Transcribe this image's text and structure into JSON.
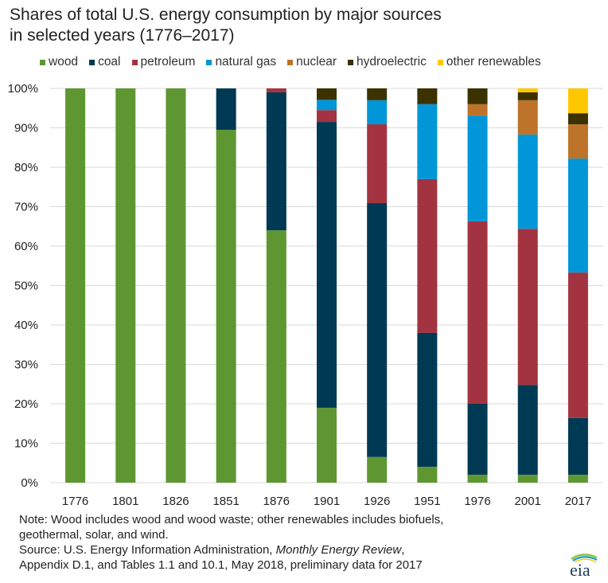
{
  "chart_data": {
    "type": "bar",
    "stacked": true,
    "title": "Shares of total U.S. energy consumption by major sources in selected years (1776–2017)",
    "title_lines": [
      "Shares of total U.S. energy consumption by major sources",
      "in selected years (1776–2017)"
    ],
    "xlabel": "",
    "ylabel": "",
    "ylim": [
      0,
      100
    ],
    "yticks": [
      "0%",
      "10%",
      "20%",
      "30%",
      "40%",
      "50%",
      "60%",
      "70%",
      "80%",
      "90%",
      "100%"
    ],
    "grid": true,
    "legend_position": "top",
    "categories": [
      "1776",
      "1801",
      "1826",
      "1851",
      "1876",
      "1901",
      "1926",
      "1951",
      "1976",
      "2001",
      "2017"
    ],
    "series": [
      {
        "name": "wood",
        "color": "#5e9732",
        "values": [
          100,
          100,
          100,
          89.5,
          64,
          19,
          6.5,
          4,
          2,
          2,
          2
        ]
      },
      {
        "name": "coal",
        "color": "#003953",
        "values": [
          0,
          0,
          0,
          10.5,
          35,
          72.5,
          64.4,
          34,
          18,
          22.8,
          14.4
        ]
      },
      {
        "name": "petroleum",
        "color": "#a33340",
        "values": [
          0,
          0,
          0,
          0,
          1,
          3,
          20,
          39,
          46.3,
          39.6,
          36.9
        ]
      },
      {
        "name": "natural gas",
        "color": "#0096d7",
        "values": [
          0,
          0,
          0,
          0,
          0,
          2.6,
          6.1,
          19,
          26.8,
          23.9,
          28.9
        ]
      },
      {
        "name": "nuclear",
        "color": "#bd732a",
        "values": [
          0,
          0,
          0,
          0,
          0,
          0,
          0,
          0,
          2.9,
          8.7,
          8.7
        ]
      },
      {
        "name": "hydroelectric",
        "color": "#3b3200",
        "values": [
          0,
          0,
          0,
          0,
          0,
          2.9,
          3,
          4,
          4,
          2,
          2.8
        ]
      },
      {
        "name": "other renewables",
        "color": "#ffc700",
        "values": [
          0,
          0,
          0,
          0,
          0,
          0,
          0,
          0,
          0,
          1,
          6.3
        ]
      }
    ]
  },
  "notes": {
    "line1": "Note: Wood includes wood and wood waste; other renewables includes biofuels,",
    "line2": "geothermal, solar, and wind.",
    "source_prefix": "Source: U.S. Energy Information Administration, ",
    "source_italic": "Monthly Energy Review",
    "source_suffix": ",",
    "line4": "Appendix D.1, and Tables 1.1 and 10.1, May 2018, preliminary data for 2017"
  },
  "logo": {
    "text": "eia"
  }
}
